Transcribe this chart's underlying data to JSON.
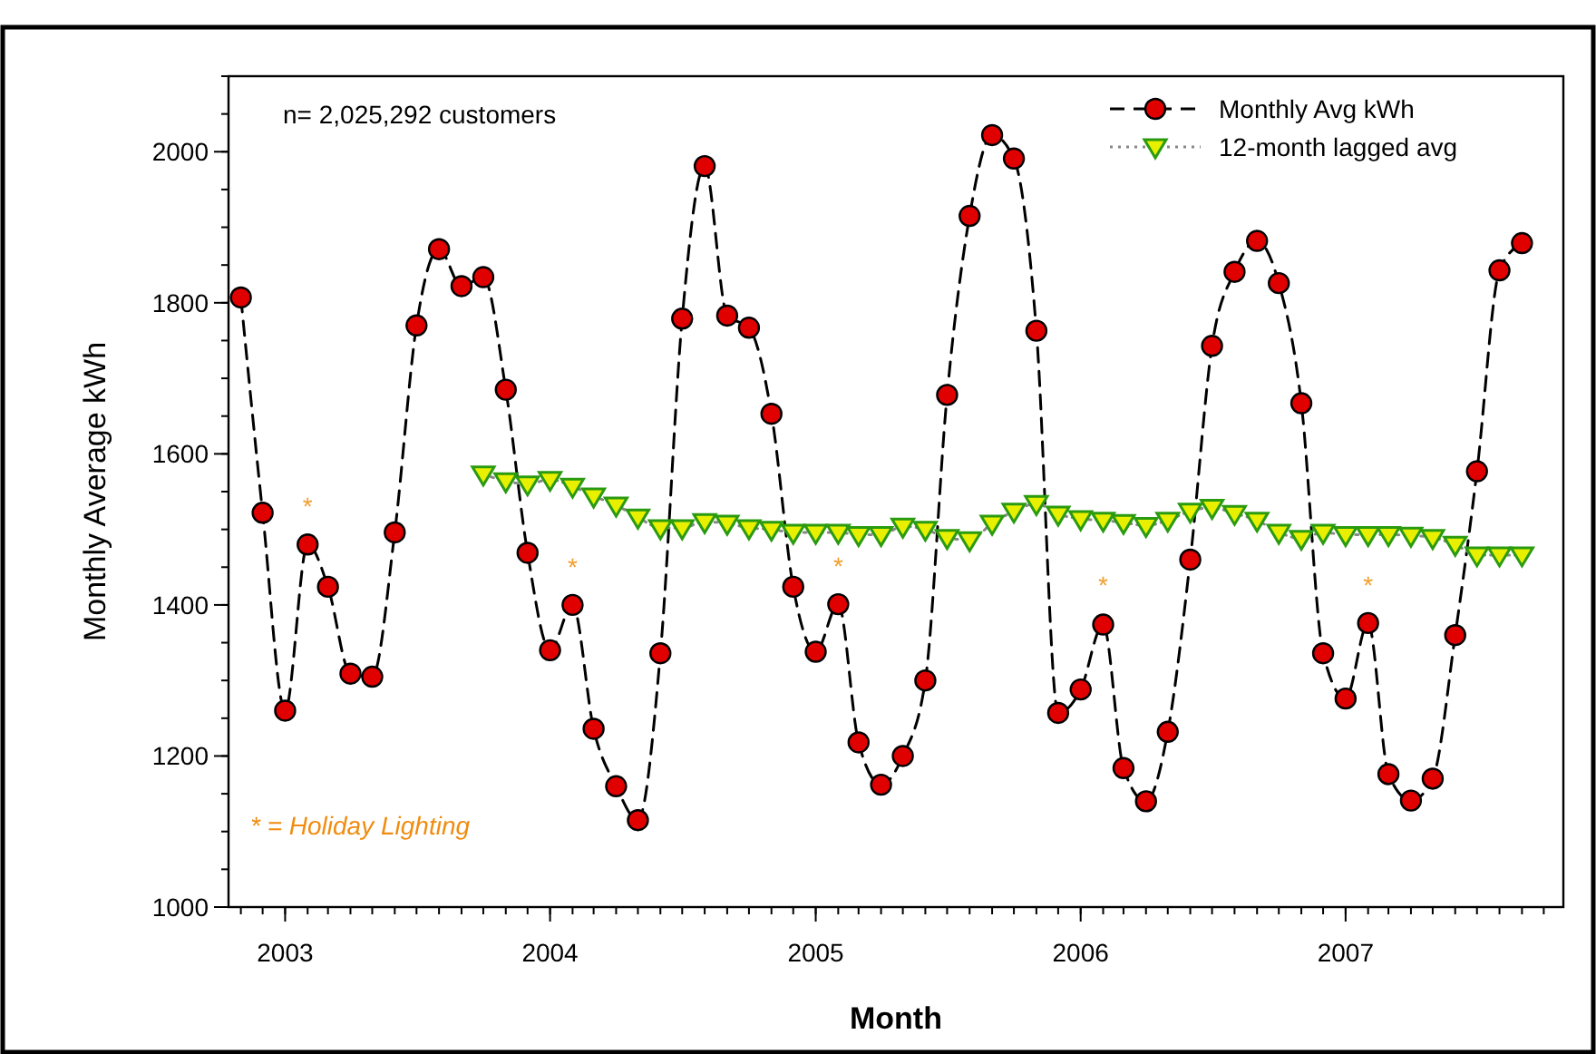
{
  "chart_data": {
    "type": "line",
    "xlabel": "Month",
    "ylabel": "Monthly Average kWh",
    "x": [
      "2002-11",
      "2002-12",
      "2003-01",
      "2003-02",
      "2003-03",
      "2003-04",
      "2003-05",
      "2003-06",
      "2003-07",
      "2003-08",
      "2003-09",
      "2003-10",
      "2003-11",
      "2003-12",
      "2004-01",
      "2004-02",
      "2004-03",
      "2004-04",
      "2004-05",
      "2004-06",
      "2004-07",
      "2004-08",
      "2004-09",
      "2004-10",
      "2004-11",
      "2004-12",
      "2005-01",
      "2005-02",
      "2005-03",
      "2005-04",
      "2005-05",
      "2005-06",
      "2005-07",
      "2005-08",
      "2005-09",
      "2005-10",
      "2005-11",
      "2005-12",
      "2006-01",
      "2006-02",
      "2006-03",
      "2006-04",
      "2006-05",
      "2006-06",
      "2006-07",
      "2006-08",
      "2006-09",
      "2006-10",
      "2006-11",
      "2006-12",
      "2007-01",
      "2007-02",
      "2007-03",
      "2007-04",
      "2007-05",
      "2007-06",
      "2007-07",
      "2007-08",
      "2007-09"
    ],
    "series": [
      {
        "name": "Monthly Avg kWh",
        "color": "#e00000",
        "marker": "circle",
        "line_style": "dashed",
        "values": [
          1807,
          1522,
          1260,
          1480,
          1424,
          1309,
          1305,
          1496,
          1770,
          1871,
          1822,
          1834,
          1685,
          1469,
          1340,
          1400,
          1236,
          1160,
          1115,
          1336,
          1779,
          1981,
          1783,
          1767,
          1653,
          1424,
          1338,
          1401,
          1218,
          1162,
          1200,
          1300,
          1678,
          1915,
          2022,
          1991,
          1763,
          1257,
          1288,
          1374,
          1184,
          1140,
          1232,
          1460,
          1743,
          1841,
          1882,
          1826,
          1667,
          1336,
          1276,
          1376,
          1176,
          1141,
          1170,
          1360,
          1577,
          1843,
          1879
        ]
      },
      {
        "name": "12-month lagged avg",
        "color": "#e8f000",
        "marker": "triangle",
        "line_style": "dotted",
        "x": [
          "2003-10",
          "2003-11",
          "2003-12",
          "2004-01",
          "2004-02",
          "2004-03",
          "2004-04",
          "2004-05",
          "2004-06",
          "2004-07",
          "2004-08",
          "2004-09",
          "2004-10",
          "2004-11",
          "2004-12",
          "2005-01",
          "2005-02",
          "2005-03",
          "2005-04",
          "2005-05",
          "2005-06",
          "2005-07",
          "2005-08",
          "2005-09",
          "2005-10",
          "2005-11",
          "2005-12",
          "2006-01",
          "2006-02",
          "2006-03",
          "2006-04",
          "2006-05",
          "2006-06",
          "2006-07",
          "2006-08",
          "2006-09",
          "2006-10",
          "2006-11",
          "2006-12",
          "2007-01",
          "2007-02",
          "2007-03",
          "2007-04",
          "2007-05",
          "2007-06",
          "2007-07",
          "2007-08",
          "2007-09"
        ],
        "values": [
          1573,
          1564,
          1560,
          1566,
          1557,
          1544,
          1532,
          1516,
          1502,
          1502,
          1510,
          1508,
          1502,
          1500,
          1496,
          1496,
          1496,
          1493,
          1493,
          1504,
          1500,
          1489,
          1486,
          1508,
          1524,
          1534,
          1520,
          1514,
          1512,
          1509,
          1505,
          1512,
          1524,
          1529,
          1521,
          1512,
          1496,
          1488,
          1496,
          1493,
          1493,
          1493,
          1492,
          1489,
          1480,
          1466,
          1466,
          1466
        ]
      }
    ],
    "xlim": [
      "2002-10-15",
      "2007-10-28"
    ],
    "xticks": [
      "2003",
      "2004",
      "2005",
      "2006",
      "2007"
    ],
    "ylim": [
      1000,
      2100
    ],
    "yticks": [
      1000,
      1200,
      1400,
      1600,
      1800,
      2000
    ],
    "grid": false,
    "legend": "top right",
    "annotations": [
      "n= 2,025,292 customers",
      "* = Holiday Lighting",
      {
        "text": "*",
        "x": "2003-02",
        "y": 1480
      },
      {
        "text": "*",
        "x": "2004-02",
        "y": 1400
      },
      {
        "text": "*",
        "x": "2005-02",
        "y": 1401
      },
      {
        "text": "*",
        "x": "2006-02",
        "y": 1376
      },
      {
        "text": "*",
        "x": "2007-02",
        "y": 1376
      }
    ]
  }
}
